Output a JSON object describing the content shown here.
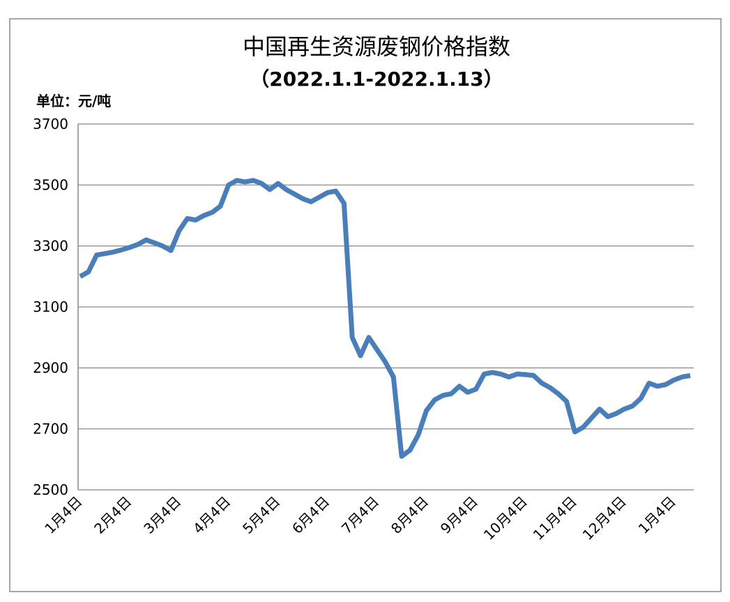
{
  "chart_data": {
    "type": "line",
    "title": "中国再生资源废钢价格指数",
    "subtitle": "（2022.1.1-2022.1.13）",
    "y_label": "单位：元/吨",
    "categories": [
      "1月4日",
      null,
      null,
      null,
      null,
      null,
      "2月4日",
      null,
      null,
      null,
      null,
      null,
      "3月4日",
      null,
      null,
      null,
      null,
      null,
      "4月4日",
      null,
      null,
      null,
      null,
      null,
      "5月4日",
      null,
      null,
      null,
      null,
      null,
      "6月4日",
      null,
      null,
      null,
      null,
      null,
      "7月4日",
      null,
      null,
      null,
      null,
      null,
      "8月4日",
      null,
      null,
      null,
      null,
      null,
      "9月4日",
      null,
      null,
      null,
      null,
      null,
      "10月4日",
      null,
      null,
      null,
      null,
      null,
      "11月4日",
      null,
      null,
      null,
      null,
      null,
      "12月4日",
      null,
      null,
      null,
      null,
      null,
      "1月4日",
      null,
      null
    ],
    "values": [
      3200,
      3215,
      3270,
      3275,
      3280,
      3287,
      3295,
      3305,
      3320,
      3310,
      3300,
      3285,
      3350,
      3390,
      3385,
      3400,
      3410,
      3430,
      3500,
      3515,
      3510,
      3515,
      3505,
      3485,
      3505,
      3485,
      3470,
      3455,
      3445,
      3460,
      3475,
      3480,
      3440,
      3000,
      2940,
      3000,
      2960,
      2920,
      2870,
      2610,
      2630,
      2680,
      2760,
      2795,
      2810,
      2815,
      2840,
      2820,
      2830,
      2880,
      2885,
      2880,
      2870,
      2880,
      2878,
      2875,
      2850,
      2835,
      2815,
      2790,
      2690,
      2705,
      2735,
      2765,
      2740,
      2750,
      2765,
      2775,
      2800,
      2850,
      2840,
      2845,
      2860,
      2870,
      2875
    ],
    "color": "#4a7ebb",
    "ylim": [
      2500,
      3700
    ],
    "yticks": [
      2500,
      2700,
      2900,
      3100,
      3300,
      3500,
      3700
    ],
    "grid": true
  }
}
